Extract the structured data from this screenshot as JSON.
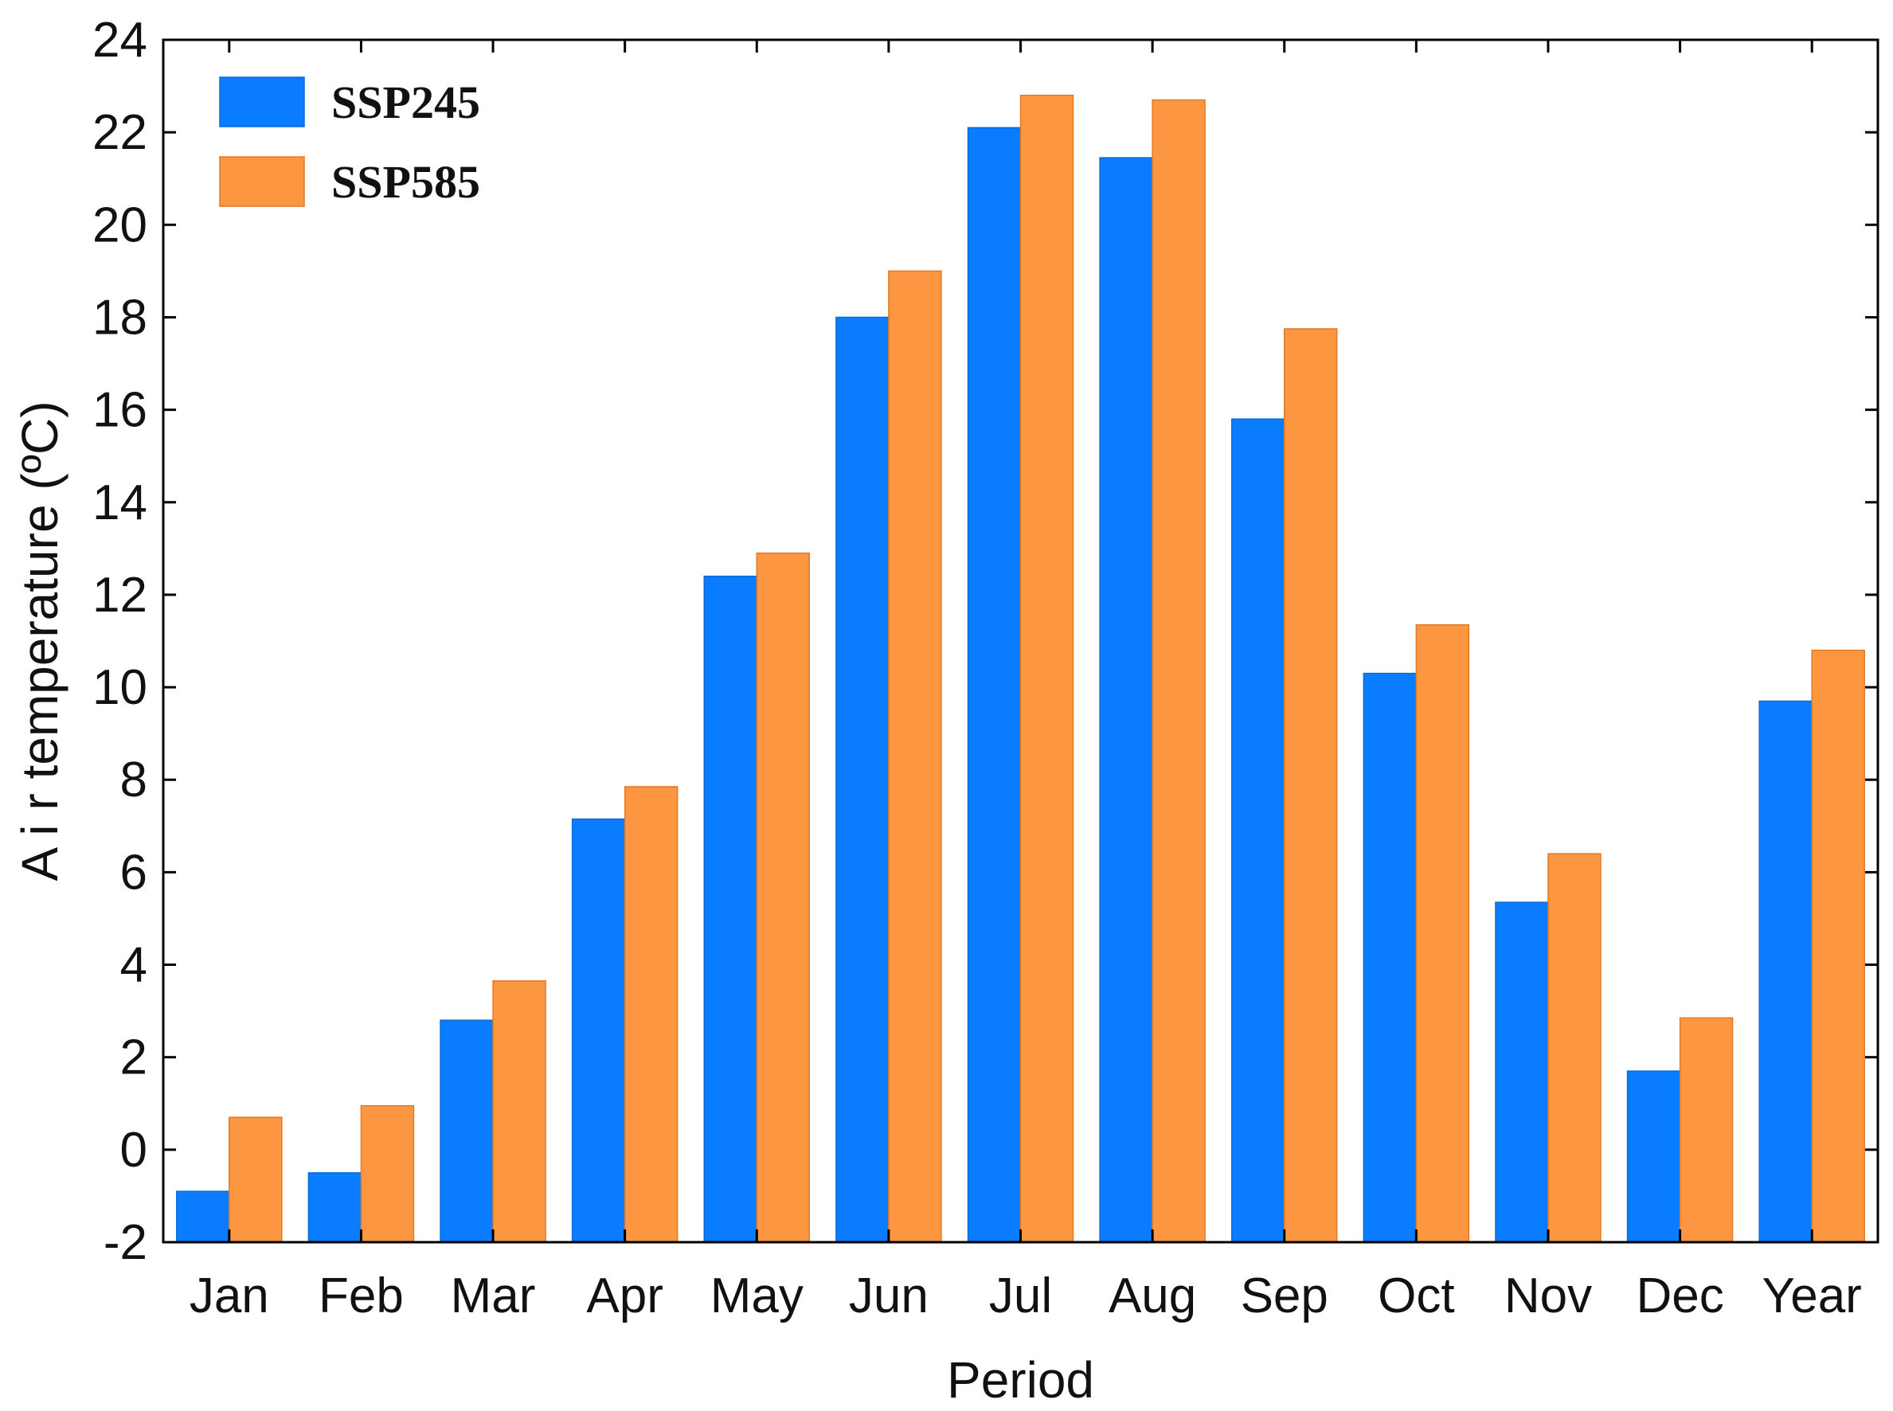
{
  "chart_data": {
    "type": "bar",
    "title": "",
    "xlabel": "Period",
    "ylabel": "A i r  temperature (ºC)",
    "ylim": [
      -2,
      24
    ],
    "yticks": [
      -2,
      0,
      2,
      4,
      6,
      8,
      10,
      12,
      14,
      16,
      18,
      20,
      22,
      24
    ],
    "grid": false,
    "legend_position": "top-left",
    "categories": [
      "Jan",
      "Feb",
      "Mar",
      "Apr",
      "May",
      "Jun",
      "Jul",
      "Aug",
      "Sep",
      "Oct",
      "Nov",
      "Dec",
      "Year"
    ],
    "series": [
      {
        "name": "SSP245",
        "color": "#0a7cff",
        "values": [
          -0.9,
          -0.5,
          2.8,
          7.15,
          12.4,
          18.0,
          22.1,
          21.45,
          15.8,
          10.3,
          5.35,
          1.7,
          9.7
        ]
      },
      {
        "name": "SSP585",
        "color": "#fd9641",
        "values": [
          0.7,
          0.95,
          3.65,
          7.85,
          12.9,
          19.0,
          22.8,
          22.7,
          17.75,
          11.35,
          6.4,
          2.85,
          10.8
        ]
      }
    ]
  }
}
